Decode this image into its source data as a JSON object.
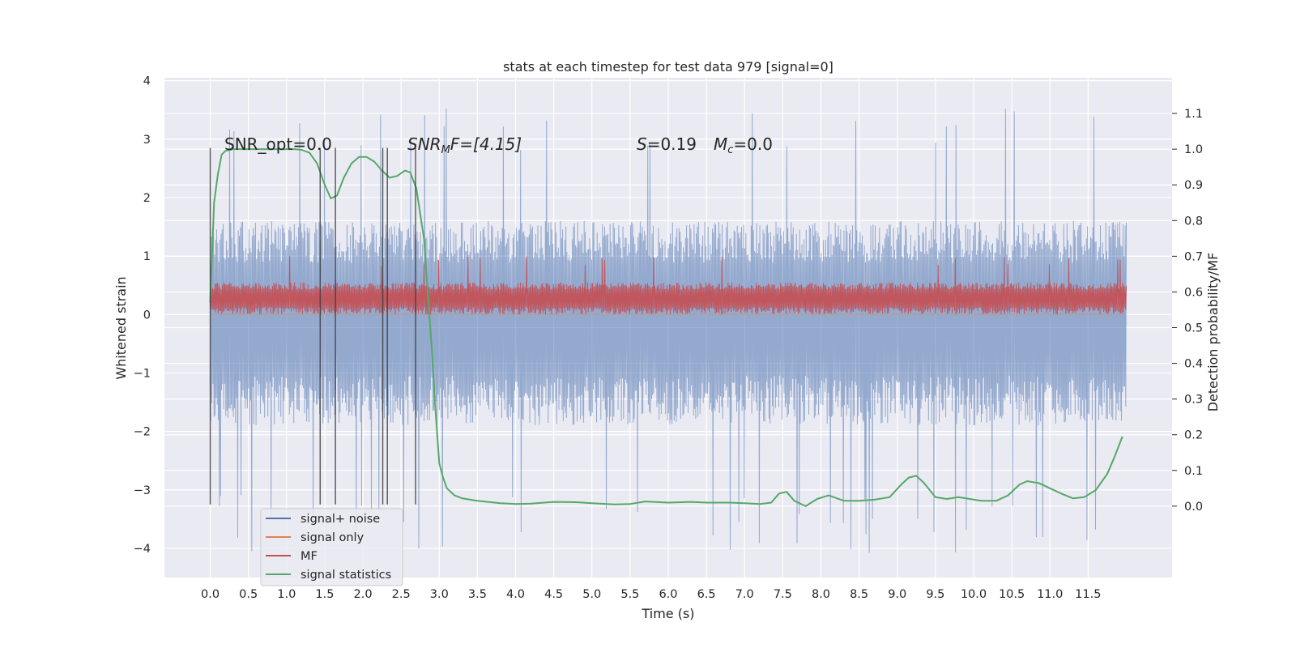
{
  "chart_data": {
    "type": "line",
    "title": "stats at each timestep for test data 979 [signal=0]",
    "xlabel": "Time (s)",
    "ylabel": "Whitened strain",
    "ylabel_right": "Detection probability/MF",
    "xlim": [
      -0.6,
      12.6
    ],
    "ylim": [
      -4.5,
      4.05
    ],
    "ylim_right": [
      -0.2,
      1.2
    ],
    "x_ticks": [
      0.0,
      0.5,
      1.0,
      1.5,
      2.0,
      2.5,
      3.0,
      3.5,
      4.0,
      4.5,
      5.0,
      5.5,
      6.0,
      6.5,
      7.0,
      7.5,
      8.0,
      8.5,
      9.0,
      9.5,
      10.0,
      10.5,
      11.0,
      11.5
    ],
    "x_tick_labels": [
      "0.0",
      "0.5",
      "1.0",
      "1.5",
      "2.0",
      "2.5",
      "3.0",
      "3.5",
      "4.0",
      "4.5",
      "5.0",
      "5.5",
      "6.0",
      "6.5",
      "7.0",
      "7.5",
      "8.0",
      "8.5",
      "9.0",
      "9.5",
      "10.0",
      "10.5",
      "11.0",
      "11.5"
    ],
    "y_ticks": [
      -4,
      -3,
      -2,
      -1,
      0,
      1,
      2,
      3,
      4
    ],
    "y_tick_labels": [
      "−4",
      "−3",
      "−2",
      "−1",
      "0",
      "1",
      "2",
      "3",
      "4"
    ],
    "y_right_ticks": [
      0.0,
      0.1,
      0.2,
      0.3,
      0.4,
      0.5,
      0.6,
      0.7,
      0.8,
      0.9,
      1.0,
      1.1
    ],
    "y_right_tick_labels": [
      "0.0",
      "0.1",
      "0.2",
      "0.3",
      "0.4",
      "0.5",
      "0.6",
      "0.7",
      "0.8",
      "0.9",
      "1.0",
      "1.1"
    ],
    "grid": true,
    "legend_position": "bottom-left",
    "annotations": {
      "snr_opt": "SNR_opt=0.0",
      "snr_mf_main": "SNR",
      "snr_mf_sub": "M",
      "snr_mf_rest": "F=[4.15]",
      "s_italic": "S",
      "s_rest": "=0.19",
      "mc_italic": "M",
      "mc_sub": "c",
      "mc_rest": "=0.0"
    },
    "vertical_markers_x": [
      0.0,
      1.44,
      1.64,
      2.26,
      2.32,
      2.69
    ],
    "vertical_markers_ylim": [
      -3.25,
      2.85
    ],
    "series": [
      {
        "name": "signal+ noise",
        "color": "#4c72b0",
        "axis": "left",
        "kind": "noise_band",
        "x_range": [
          0.0,
          12.0
        ],
        "typical_range": [
          -1.9,
          1.6
        ],
        "max": 3.7,
        "min": -4.1
      },
      {
        "name": "signal only",
        "color": "#dd8452",
        "axis": "left",
        "kind": "flat",
        "x_range": [
          0.0,
          12.0
        ],
        "value": 0.0
      },
      {
        "name": "MF",
        "color": "#c44e52",
        "axis": "left",
        "kind": "noise_band",
        "x_range": [
          0.0,
          12.0
        ],
        "typical_range": [
          0.0,
          0.55
        ],
        "max": 1.0,
        "min": 0.0
      },
      {
        "name": "signal statistics",
        "color": "#55a868",
        "axis": "right",
        "kind": "line",
        "x": [
          0.0,
          0.05,
          0.1,
          0.15,
          0.2,
          0.3,
          0.5,
          0.8,
          1.0,
          1.1,
          1.2,
          1.3,
          1.4,
          1.5,
          1.58,
          1.66,
          1.75,
          1.85,
          1.95,
          2.05,
          2.15,
          2.25,
          2.35,
          2.45,
          2.55,
          2.62,
          2.7,
          2.8,
          2.9,
          2.95,
          3.0,
          3.05,
          3.1,
          3.2,
          3.3,
          3.5,
          3.8,
          4.0,
          4.2,
          4.5,
          4.8,
          5.0,
          5.3,
          5.5,
          5.7,
          6.0,
          6.3,
          6.5,
          6.8,
          7.0,
          7.2,
          7.35,
          7.45,
          7.55,
          7.65,
          7.8,
          7.95,
          8.1,
          8.3,
          8.5,
          8.7,
          8.9,
          9.05,
          9.15,
          9.25,
          9.35,
          9.5,
          9.65,
          9.8,
          9.95,
          10.1,
          10.3,
          10.45,
          10.6,
          10.7,
          10.85,
          11.0,
          11.15,
          11.3,
          11.45,
          11.6,
          11.75,
          11.85,
          11.95
        ],
        "y": [
          0.57,
          0.85,
          0.93,
          0.985,
          0.995,
          1.0,
          1.0,
          1.0,
          1.0,
          1.0,
          0.998,
          0.99,
          0.96,
          0.9,
          0.862,
          0.87,
          0.92,
          0.96,
          0.978,
          0.978,
          0.965,
          0.94,
          0.92,
          0.925,
          0.94,
          0.935,
          0.89,
          0.75,
          0.45,
          0.27,
          0.12,
          0.08,
          0.05,
          0.03,
          0.022,
          0.015,
          0.008,
          0.006,
          0.007,
          0.012,
          0.011,
          0.008,
          0.005,
          0.006,
          0.013,
          0.01,
          0.012,
          0.01,
          0.01,
          0.008,
          0.006,
          0.01,
          0.035,
          0.04,
          0.015,
          0.0,
          0.02,
          0.03,
          0.015,
          0.015,
          0.018,
          0.025,
          0.06,
          0.08,
          0.085,
          0.065,
          0.025,
          0.02,
          0.025,
          0.02,
          0.015,
          0.015,
          0.03,
          0.06,
          0.07,
          0.065,
          0.05,
          0.035,
          0.022,
          0.025,
          0.045,
          0.09,
          0.14,
          0.195
        ]
      }
    ]
  }
}
